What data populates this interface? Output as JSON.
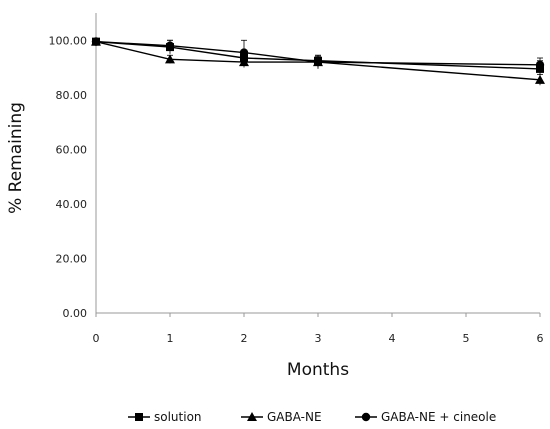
{
  "chart_data": {
    "type": "line",
    "title": "",
    "xlabel": "Months",
    "ylabel": "% Remaining",
    "xlim": [
      0,
      6
    ],
    "ylim": [
      0,
      110
    ],
    "x_ticks": [
      "0",
      "1",
      "2",
      "3",
      "4",
      "5",
      "6"
    ],
    "y_ticks": [
      "0.00",
      "20.00",
      "40.00",
      "60.00",
      "80.00",
      "100.00"
    ],
    "y_tick_values": [
      0,
      20,
      40,
      60,
      80,
      100
    ],
    "grid": false,
    "legend_position": "bottom",
    "series": [
      {
        "name": "solution",
        "marker": "square",
        "x": [
          0,
          1,
          2,
          3,
          6
        ],
        "y": [
          99.5,
          97.5,
          93.5,
          92.5,
          89.5
        ],
        "error": [
          0.5,
          2.5,
          2.0,
          2.0,
          3.0
        ]
      },
      {
        "name": "GABA-NE",
        "marker": "triangle",
        "x": [
          0,
          1,
          2,
          3,
          6
        ],
        "y": [
          99.5,
          93.0,
          92.0,
          92.0,
          85.5
        ],
        "error": [
          0.5,
          1.5,
          2.0,
          2.0,
          2.0
        ]
      },
      {
        "name": "GABA-NE + cineole",
        "marker": "circle",
        "x": [
          0,
          1,
          2,
          3,
          6
        ],
        "y": [
          99.5,
          98.0,
          95.5,
          92.0,
          91.0
        ],
        "error": [
          0.5,
          2.0,
          4.5,
          2.5,
          2.5
        ]
      }
    ]
  }
}
